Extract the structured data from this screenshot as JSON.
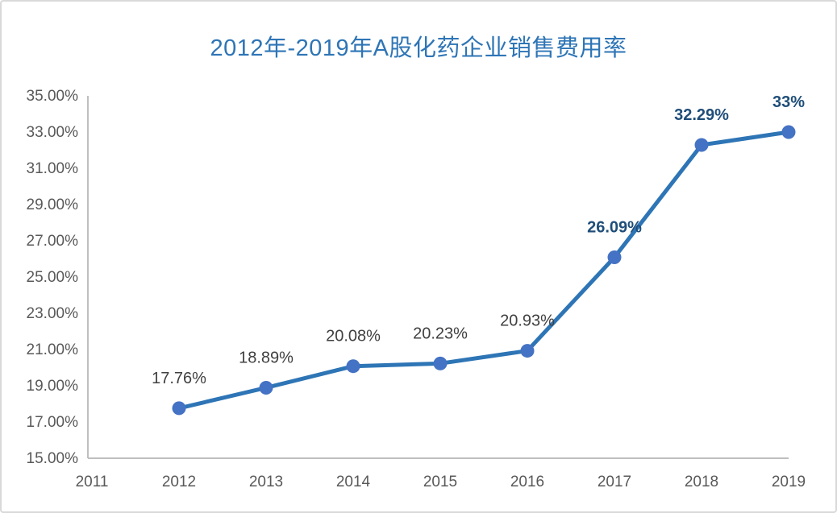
{
  "colors": {
    "title": "#2E75B6",
    "line": "#2E75B6",
    "marker": "#4472C4",
    "axis": "#BFBFBF",
    "tick_label": "#595959",
    "data_label": "#404040",
    "data_label_emphasis": "#1F4E79",
    "frame_border": "#D9D9D9"
  },
  "chart_data": {
    "type": "line",
    "title": "2012年-2019年A股化药企业销售费用率",
    "xlabel": "",
    "ylabel": "",
    "grid": false,
    "legend_position": "none",
    "ylim": [
      15,
      35
    ],
    "y_step": 2,
    "x_tick_labels": [
      "2011",
      "2012",
      "2013",
      "2014",
      "2015",
      "2016",
      "2017",
      "2018",
      "2019"
    ],
    "y_tick_labels": [
      "15.00%",
      "17.00%",
      "19.00%",
      "21.00%",
      "23.00%",
      "25.00%",
      "27.00%",
      "29.00%",
      "31.00%",
      "33.00%",
      "35.00%"
    ],
    "series": [
      {
        "x": [
          2012,
          2013,
          2014,
          2015,
          2016,
          2017,
          2018,
          2019
        ],
        "values": [
          17.76,
          18.89,
          20.08,
          20.23,
          20.93,
          26.09,
          32.29,
          33.0
        ],
        "labels": [
          "17.76%",
          "18.89%",
          "20.08%",
          "20.23%",
          "20.93%",
          "26.09%",
          "32.29%",
          "33%"
        ],
        "label_emphasis": [
          false,
          false,
          false,
          false,
          false,
          true,
          true,
          true
        ]
      }
    ]
  }
}
